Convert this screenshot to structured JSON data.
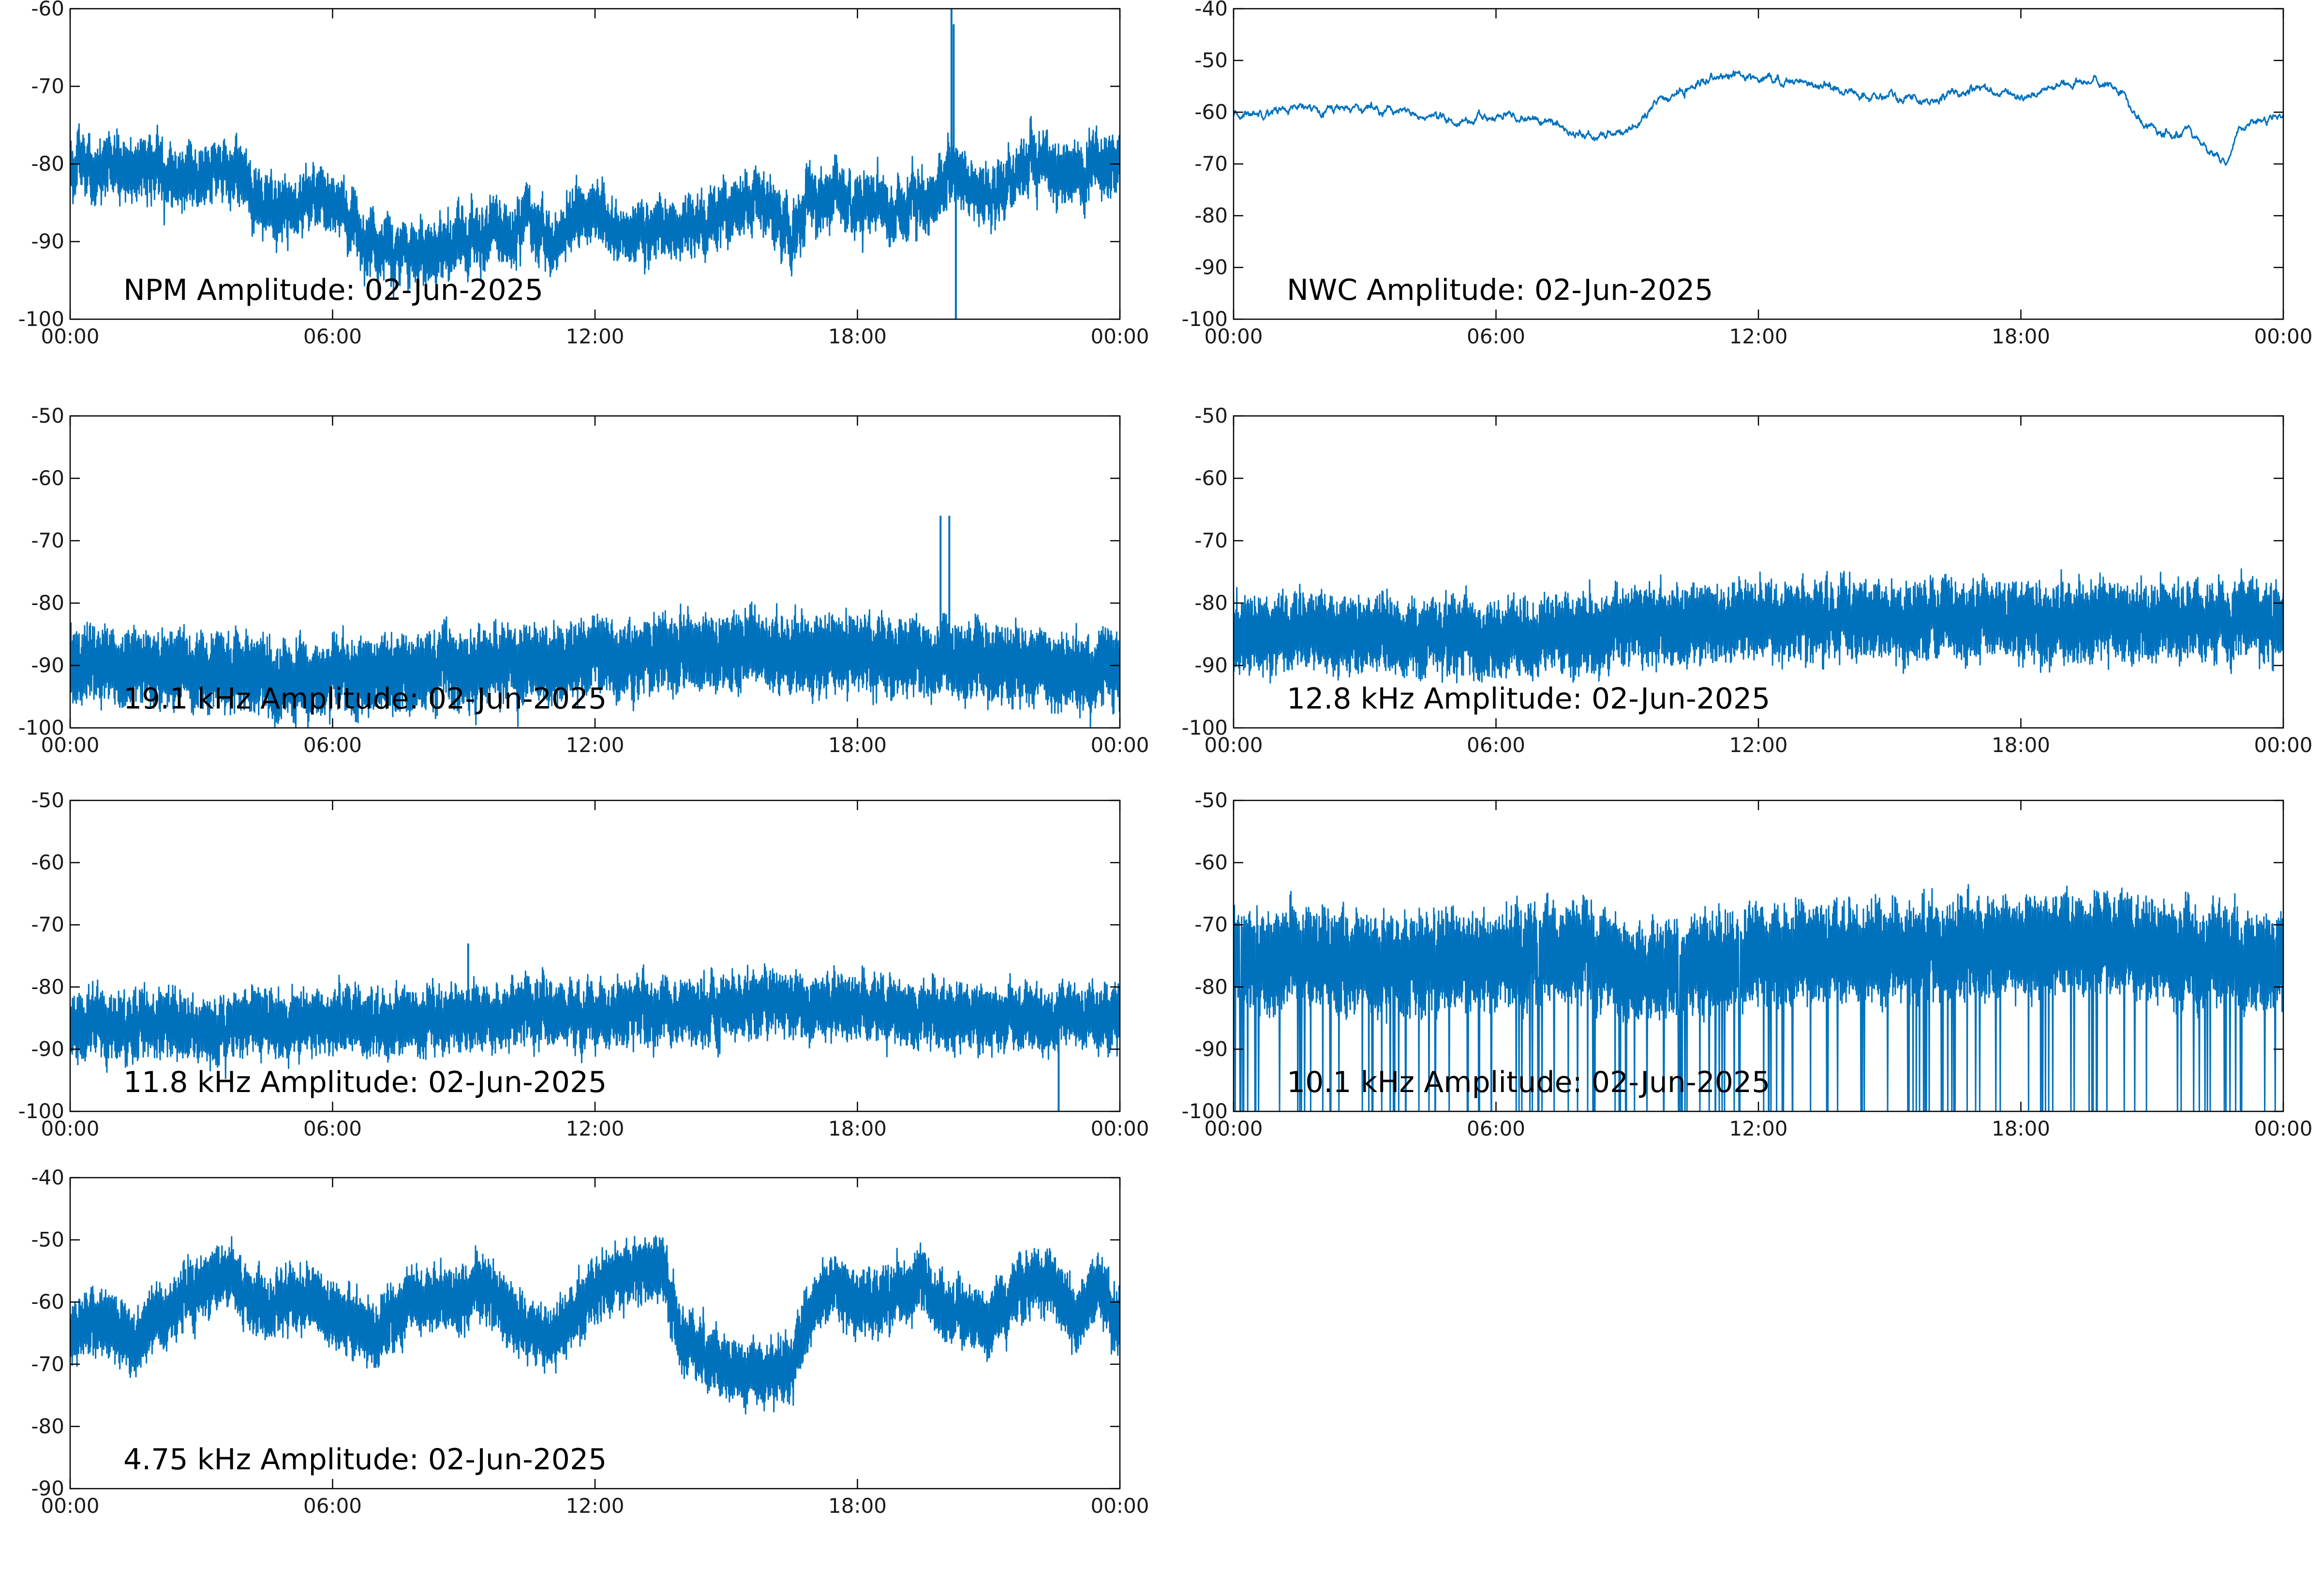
{
  "figure": {
    "date": "02-Jun-2025",
    "line_color": "#0072bd"
  },
  "chart_data": [
    {
      "type": "line",
      "title": "NPM Amplitude: 02-Jun-2025",
      "xlabel": "",
      "ylabel": "",
      "x_ticks": [
        "00:00",
        "06:00",
        "12:00",
        "18:00",
        "00:00"
      ],
      "xlim": [
        0,
        24
      ],
      "ylim": [
        -100,
        -60
      ],
      "y_ticks": [
        -60,
        -70,
        -80,
        -90,
        -100
      ],
      "grid": false,
      "series": [
        {
          "x": [
            0,
            1,
            2,
            3,
            3.7,
            4,
            4.6,
            5,
            5.5,
            6,
            6.5,
            7,
            7.5,
            8,
            8.5,
            9,
            9.5,
            10,
            10.5,
            11,
            11.5,
            12,
            12.5,
            13,
            13.5,
            14,
            14.5,
            15,
            15.5,
            16,
            16.5,
            17,
            17.5,
            18,
            18.5,
            19,
            19.5,
            20,
            20.3,
            20.5,
            21,
            21.5,
            22,
            22.5,
            23,
            23.5,
            24
          ],
          "values": [
            -80,
            -81,
            -81,
            -82,
            -80,
            -83,
            -86,
            -86,
            -84,
            -85,
            -88,
            -90,
            -91,
            -92,
            -91,
            -90,
            -89,
            -89,
            -86,
            -90,
            -87,
            -86,
            -89,
            -89,
            -88,
            -88,
            -88,
            -86,
            -84,
            -86,
            -89,
            -85,
            -83,
            -85,
            -85,
            -86,
            -85,
            -83,
            -80,
            -84,
            -84,
            -82,
            -80,
            -81,
            -81,
            -80,
            -80
          ],
          "spread": 3.5,
          "spikes": [
            {
              "x": 20.15,
              "y": -60
            },
            {
              "x": 20.25,
              "y": -100
            },
            {
              "x": 20.2,
              "y": -62
            }
          ],
          "noise_level": "high"
        }
      ]
    },
    {
      "type": "line",
      "title": "NWC Amplitude: 02-Jun-2025",
      "xlabel": "",
      "ylabel": "",
      "x_ticks": [
        "00:00",
        "06:00",
        "12:00",
        "18:00",
        "00:00"
      ],
      "xlim": [
        0,
        24
      ],
      "ylim": [
        -100,
        -40
      ],
      "y_ticks": [
        -40,
        -50,
        -60,
        -70,
        -80,
        -90,
        -100
      ],
      "grid": false,
      "series": [
        {
          "x": [
            0,
            0.5,
            1,
            2,
            3,
            3.7,
            4,
            5,
            5.5,
            6,
            6.5,
            7,
            7.5,
            8,
            8.3,
            8.7,
            9,
            9.3,
            9.7,
            10,
            10.5,
            11,
            11.5,
            12,
            12.5,
            13,
            13.5,
            14,
            14.5,
            15,
            15.5,
            16,
            16.5,
            17,
            17.5,
            18,
            18.5,
            19,
            19.5,
            20,
            20.3,
            20.7,
            21,
            21.5,
            21.8,
            22.1,
            22.4,
            22.7,
            23,
            23.5,
            24
          ],
          "values": [
            -61,
            -60,
            -59.5,
            -59.2,
            -59,
            -59.5,
            -60.5,
            -62,
            -61.5,
            -61,
            -61,
            -61.5,
            -63,
            -64.5,
            -65,
            -64,
            -63.5,
            -62,
            -58,
            -57,
            -55,
            -53.5,
            -53,
            -53,
            -54,
            -54,
            -55,
            -56,
            -57,
            -57,
            -57,
            -58,
            -56,
            -55,
            -56,
            -57,
            -56,
            -54.5,
            -54,
            -55,
            -56,
            -62,
            -63,
            -65,
            -63,
            -66,
            -68,
            -70,
            -63,
            -62,
            -61
          ],
          "spread": 0.6,
          "noise_level": "low"
        }
      ]
    },
    {
      "type": "line",
      "title": "19.1 kHz Amplitude: 02-Jun-2025",
      "xlabel": "",
      "ylabel": "",
      "x_ticks": [
        "00:00",
        "06:00",
        "12:00",
        "18:00",
        "00:00"
      ],
      "xlim": [
        0,
        24
      ],
      "ylim": [
        -100,
        -50
      ],
      "y_ticks": [
        -50,
        -60,
        -70,
        -80,
        -90,
        -100
      ],
      "grid": false,
      "series": [
        {
          "x": [
            0,
            2,
            4,
            5,
            6,
            8,
            10,
            12,
            14,
            16,
            18,
            20,
            22,
            24
          ],
          "values": [
            -90,
            -90,
            -91,
            -93,
            -92,
            -91,
            -90,
            -89,
            -88,
            -88,
            -88,
            -89,
            -90,
            -91
          ],
          "spread": 6,
          "spikes": [
            {
              "x": 19.9,
              "y": -66
            },
            {
              "x": 20.1,
              "y": -66
            }
          ],
          "noise_level": "very-high"
        }
      ]
    },
    {
      "type": "line",
      "title": "12.8 kHz Amplitude: 02-Jun-2025",
      "xlabel": "",
      "ylabel": "",
      "x_ticks": [
        "00:00",
        "06:00",
        "12:00",
        "18:00",
        "00:00"
      ],
      "xlim": [
        0,
        24
      ],
      "ylim": [
        -100,
        -50
      ],
      "y_ticks": [
        -50,
        -60,
        -70,
        -80,
        -90,
        -100
      ],
      "grid": false,
      "series": [
        {
          "x": [
            0,
            3,
            6,
            9,
            12,
            15,
            18,
            21,
            24
          ],
          "values": [
            -85,
            -85,
            -86,
            -84,
            -83,
            -83,
            -83,
            -83,
            -83
          ],
          "spread": 6,
          "noise_level": "very-high"
        }
      ]
    },
    {
      "type": "line",
      "title": "11.8 kHz Amplitude: 02-Jun-2025",
      "xlabel": "",
      "ylabel": "",
      "x_ticks": [
        "00:00",
        "06:00",
        "12:00",
        "18:00",
        "00:00"
      ],
      "xlim": [
        0,
        24
      ],
      "ylim": [
        -100,
        -50
      ],
      "y_ticks": [
        -50,
        -60,
        -70,
        -80,
        -90,
        -100
      ],
      "grid": false,
      "series": [
        {
          "x": [
            0,
            3,
            6,
            9,
            12,
            15,
            16,
            17,
            18,
            21,
            24
          ],
          "values": [
            -86,
            -86,
            -86,
            -85,
            -84,
            -84,
            -82,
            -83,
            -84,
            -85,
            -85
          ],
          "spread": 5,
          "spikes": [
            {
              "x": 9.1,
              "y": -73
            },
            {
              "x": 22.6,
              "y": -100
            }
          ],
          "noise_level": "very-high"
        }
      ]
    },
    {
      "type": "line",
      "title": "10.1 kHz Amplitude: 02-Jun-2025",
      "xlabel": "",
      "ylabel": "",
      "x_ticks": [
        "00:00",
        "06:00",
        "12:00",
        "18:00",
        "00:00"
      ],
      "xlim": [
        0,
        24
      ],
      "ylim": [
        -100,
        -50
      ],
      "y_ticks": [
        -50,
        -60,
        -70,
        -80,
        -90,
        -100
      ],
      "grid": false,
      "series": [
        {
          "x": [
            0,
            3,
            6,
            8,
            9,
            12,
            15,
            18,
            20,
            22,
            24
          ],
          "values": [
            -75,
            -76,
            -76,
            -74,
            -78,
            -75,
            -74,
            -74,
            -73,
            -75,
            -76
          ],
          "spread": 8,
          "dropouts_to": -100,
          "noise_level": "extreme"
        }
      ]
    },
    {
      "type": "line",
      "title": "4.75 kHz Amplitude: 02-Jun-2025",
      "xlabel": "",
      "ylabel": "",
      "x_ticks": [
        "00:00",
        "06:00",
        "12:00",
        "18:00",
        "00:00"
      ],
      "xlim": [
        0,
        24
      ],
      "ylim": [
        -90,
        -40
      ],
      "y_ticks": [
        -40,
        -50,
        -60,
        -70,
        -80,
        -90
      ],
      "grid": false,
      "series": [
        {
          "x": [
            0,
            0.5,
            1,
            1.5,
            2,
            2.5,
            3,
            3.5,
            4,
            4.5,
            5,
            5.5,
            6,
            6.5,
            7,
            7.5,
            8,
            8.5,
            9,
            9.5,
            10,
            10.5,
            11,
            11.5,
            12,
            12.5,
            13,
            13.5,
            14,
            14.5,
            15,
            15.5,
            16,
            16.5,
            17,
            17.5,
            18,
            18.5,
            19,
            19.5,
            20,
            20.5,
            21,
            21.5,
            22,
            22.5,
            23,
            23.5,
            24
          ],
          "values": [
            -65,
            -62,
            -64,
            -67,
            -62,
            -60,
            -58,
            -56,
            -58,
            -62,
            -59,
            -60,
            -62,
            -64,
            -66,
            -61,
            -60,
            -59,
            -60,
            -57,
            -62,
            -64,
            -66,
            -62,
            -59,
            -56,
            -54,
            -55,
            -66,
            -69,
            -70,
            -71,
            -72,
            -70,
            -60,
            -58,
            -60,
            -61,
            -58,
            -57,
            -62,
            -62,
            -64,
            -59,
            -56,
            -57,
            -64,
            -58,
            -62
          ],
          "spread": 5,
          "noise_level": "very-high"
        }
      ]
    }
  ]
}
